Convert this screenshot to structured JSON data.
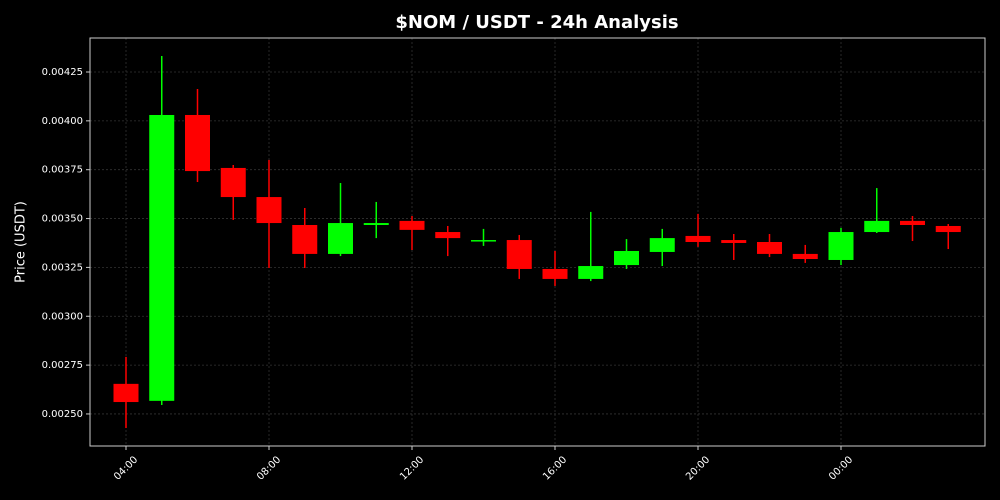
{
  "chart_data": {
    "type": "candlestick",
    "title": "$NOM / USDT - 24h Analysis",
    "y_label": "Price (USDT)",
    "categories": [
      "04:00",
      null,
      null,
      null,
      "08:00",
      null,
      null,
      null,
      "12:00",
      null,
      null,
      null,
      "16:00",
      null,
      null,
      null,
      "20:00",
      null,
      null,
      null,
      "00:00",
      null,
      null,
      null
    ],
    "open": [
      0.002654,
      0.002567,
      0.00403,
      0.003759,
      0.00361,
      0.003467,
      0.003319,
      0.003467,
      0.003488,
      0.003431,
      0.003385,
      0.00339,
      0.003242,
      0.003191,
      0.003262,
      0.003329,
      0.003411,
      0.00339,
      0.00338,
      0.003319,
      0.003288,
      0.003431,
      0.003488,
      0.003462
    ],
    "high": [
      0.002792,
      0.004332,
      0.004163,
      0.003774,
      0.0038,
      0.003554,
      0.003682,
      0.003585,
      0.003513,
      0.003462,
      0.003447,
      0.003416,
      0.003334,
      0.003534,
      0.003395,
      0.003447,
      0.003524,
      0.003421,
      0.003421,
      0.003365,
      0.003452,
      0.003656,
      0.003513,
      0.003472
    ],
    "low": [
      0.002428,
      0.002546,
      0.003687,
      0.003493,
      0.003247,
      0.003247,
      0.003308,
      0.0034,
      0.003339,
      0.003308,
      0.00336,
      0.003191,
      0.003155,
      0.00318,
      0.003242,
      0.003257,
      0.003355,
      0.003288,
      0.003303,
      0.003273,
      0.003262,
      0.003426,
      0.003385,
      0.003344
    ],
    "close": [
      0.002561,
      0.00403,
      0.003743,
      0.00361,
      0.003477,
      0.003319,
      0.003477,
      0.003477,
      0.003442,
      0.0034,
      0.00339,
      0.003242,
      0.003191,
      0.003257,
      0.003334,
      0.0034,
      0.00338,
      0.003375,
      0.003319,
      0.003293,
      0.003431,
      0.003488,
      0.003467,
      0.003431
    ],
    "up_color": "#00ff00",
    "down_color": "#ff0000",
    "ylim": [
      0.002336,
      0.004424
    ],
    "yticks": [
      {
        "value": 0.0025,
        "label": "0.00250"
      },
      0.00275,
      {
        "value": 0.003,
        "label": "0.00300"
      },
      0.00325,
      {
        "value": 0.0035,
        "label": "0.00350"
      },
      0.00375,
      {
        "value": 0.004,
        "label": "0.00400"
      },
      0.00425
    ],
    "grid": true
  }
}
